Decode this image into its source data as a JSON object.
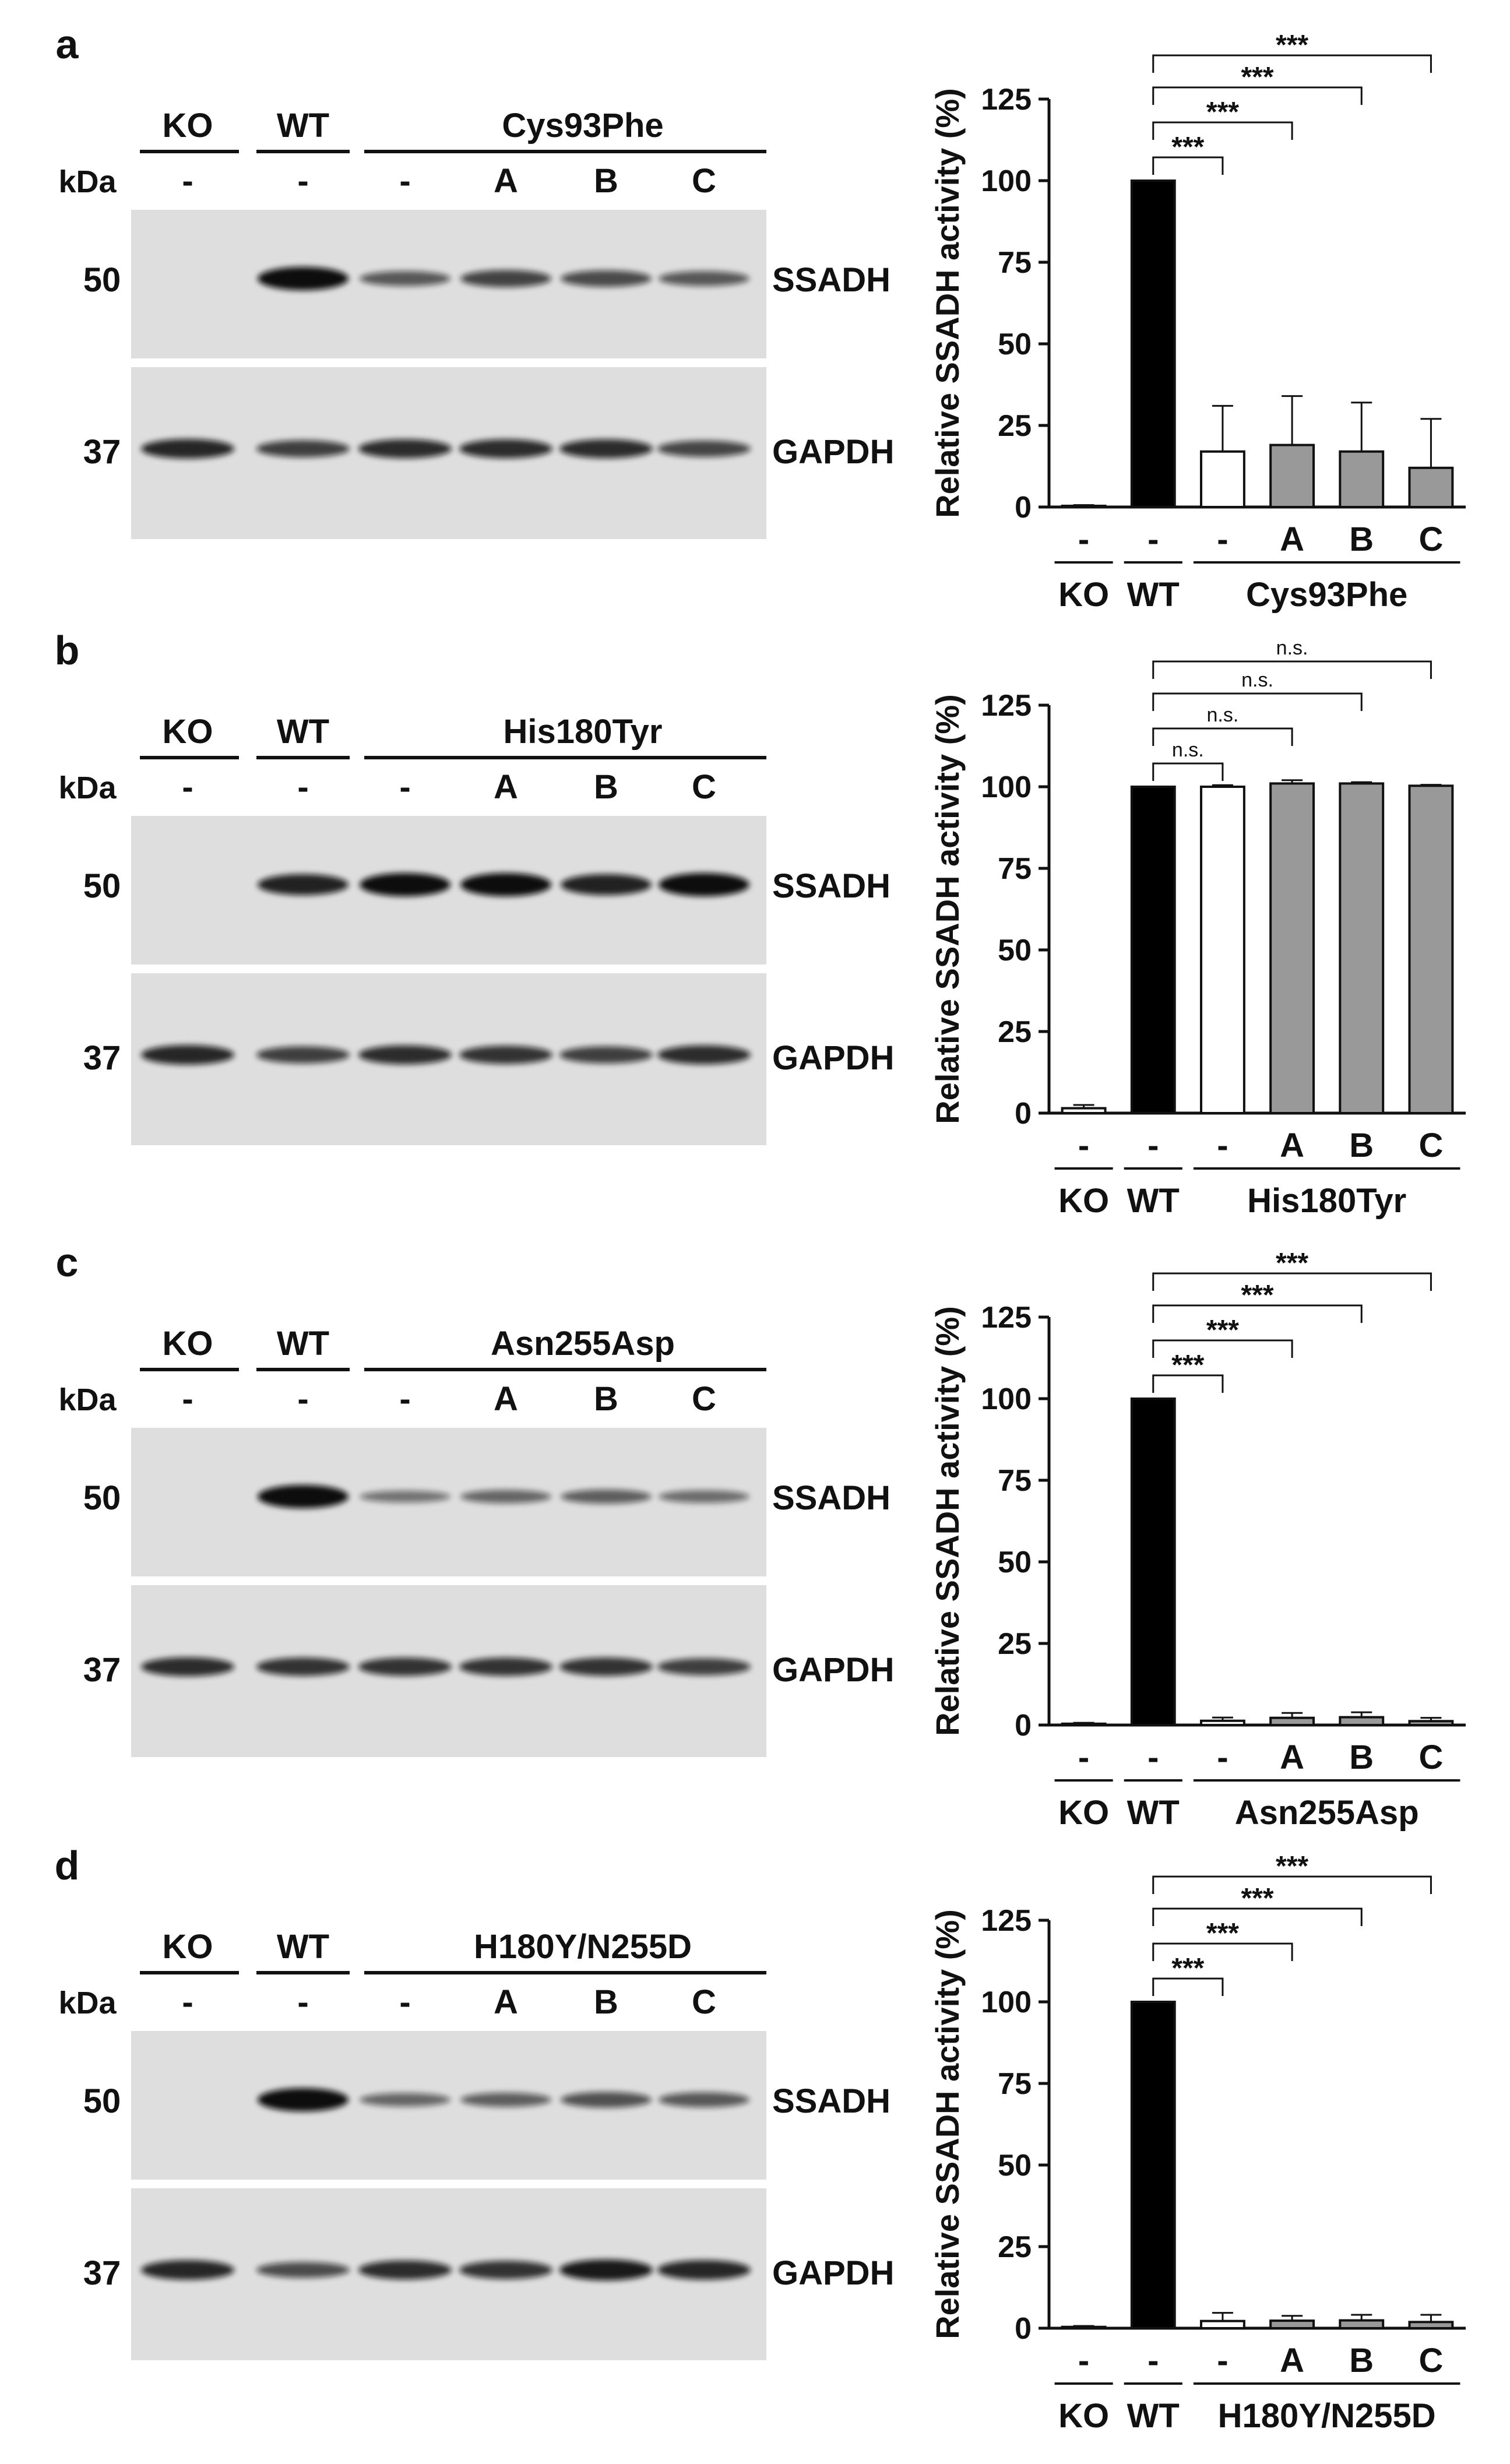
{
  "colors": {
    "wt_bar": "#000000",
    "mutant_minus_bar": "#ffffff",
    "mutant_abc_bar": "#999999",
    "ko_bar": "#ffffff",
    "blot_background": "#dedede",
    "band": "#111111"
  },
  "panels": [
    {
      "letter": "a",
      "blot": {
        "groups": [
          "KO",
          "WT",
          "Cys93Phe"
        ],
        "kda_label": "kDa",
        "lane_labels": [
          "-",
          "-",
          "-",
          "A",
          "B",
          "C"
        ],
        "markers": [
          "50",
          "37"
        ],
        "proteins": [
          "SSADH",
          "GAPDH"
        ],
        "ssadh_intensity": [
          0,
          1.0,
          0.45,
          0.6,
          0.55,
          0.45
        ],
        "gapdh_intensity": [
          0.8,
          0.6,
          0.75,
          0.75,
          0.75,
          0.55
        ]
      },
      "chart_data": {
        "type": "bar",
        "ylabel": "Relative SSADH activity (%)",
        "ylim": [
          0,
          125
        ],
        "yticks": [
          "0",
          "25",
          "50",
          "75",
          "100",
          "125"
        ],
        "categories": [
          "-",
          "-",
          "-",
          "A",
          "B",
          "C"
        ],
        "groups": [
          "KO",
          "WT",
          "Cys93Phe"
        ],
        "values": [
          0.3,
          100,
          17,
          19,
          17,
          12
        ],
        "errors": [
          0.3,
          0,
          14,
          15,
          15,
          15
        ],
        "significance": [
          "***",
          "***",
          "***",
          "***"
        ]
      }
    },
    {
      "letter": "b",
      "blot": {
        "groups": [
          "KO",
          "WT",
          "His180Tyr"
        ],
        "kda_label": "kDa",
        "lane_labels": [
          "-",
          "-",
          "-",
          "A",
          "B",
          "C"
        ],
        "markers": [
          "50",
          "37"
        ],
        "proteins": [
          "SSADH",
          "GAPDH"
        ],
        "ssadh_intensity": [
          0,
          0.85,
          1.0,
          1.0,
          0.85,
          1.0
        ],
        "gapdh_intensity": [
          0.8,
          0.6,
          0.75,
          0.7,
          0.6,
          0.75
        ]
      },
      "chart_data": {
        "type": "bar",
        "ylabel": "Relative SSADH activity (%)",
        "ylim": [
          0,
          125
        ],
        "yticks": [
          "0",
          "25",
          "50",
          "75",
          "100",
          "125"
        ],
        "categories": [
          "-",
          "-",
          "-",
          "A",
          "B",
          "C"
        ],
        "groups": [
          "KO",
          "WT",
          "His180Tyr"
        ],
        "values": [
          1.5,
          100,
          100,
          101,
          101,
          100.3
        ],
        "errors": [
          1,
          0,
          0.5,
          1,
          0.4,
          0.3
        ],
        "significance": [
          "n.s.",
          "n.s.",
          "n.s.",
          "n.s."
        ]
      }
    },
    {
      "letter": "c",
      "blot": {
        "groups": [
          "KO",
          "WT",
          "Asn255Asp"
        ],
        "kda_label": "kDa",
        "lane_labels": [
          "-",
          "-",
          "-",
          "A",
          "B",
          "C"
        ],
        "markers": [
          "50",
          "37"
        ],
        "proteins": [
          "SSADH",
          "GAPDH"
        ],
        "ssadh_intensity": [
          0,
          1.0,
          0.25,
          0.35,
          0.4,
          0.3
        ],
        "gapdh_intensity": [
          0.75,
          0.7,
          0.7,
          0.7,
          0.7,
          0.6
        ]
      },
      "chart_data": {
        "type": "bar",
        "ylabel": "Relative SSADH activity (%)",
        "ylim": [
          0,
          125
        ],
        "yticks": [
          "0",
          "25",
          "50",
          "75",
          "100",
          "125"
        ],
        "categories": [
          "-",
          "-",
          "-",
          "A",
          "B",
          "C"
        ],
        "groups": [
          "KO",
          "WT",
          "Asn255Asp"
        ],
        "values": [
          0.4,
          100,
          1.3,
          2.2,
          2.4,
          1.2
        ],
        "errors": [
          0.3,
          0,
          1,
          1.5,
          1.5,
          1
        ],
        "significance": [
          "***",
          "***",
          "***",
          "***"
        ]
      }
    },
    {
      "letter": "d",
      "blot": {
        "groups": [
          "KO",
          "WT",
          "H180Y/N255D"
        ],
        "kda_label": "kDa",
        "lane_labels": [
          "-",
          "-",
          "-",
          "A",
          "B",
          "C"
        ],
        "markers": [
          "50",
          "37"
        ],
        "proteins": [
          "SSADH",
          "GAPDH"
        ],
        "ssadh_intensity": [
          0,
          1.0,
          0.35,
          0.4,
          0.5,
          0.45
        ],
        "gapdh_intensity": [
          0.8,
          0.5,
          0.75,
          0.7,
          0.9,
          0.8
        ]
      },
      "chart_data": {
        "type": "bar",
        "ylabel": "Relative SSADH activity (%)",
        "ylim": [
          0,
          125
        ],
        "yticks": [
          "0",
          "25",
          "50",
          "75",
          "100",
          "125"
        ],
        "categories": [
          "-",
          "-",
          "-",
          "A",
          "B",
          "C"
        ],
        "groups": [
          "KO",
          "WT",
          "H180Y/N255D"
        ],
        "values": [
          0.4,
          100,
          2.2,
          2.3,
          2.4,
          1.9
        ],
        "errors": [
          0.3,
          0,
          2.5,
          1.5,
          1.7,
          2.2
        ],
        "significance": [
          "***",
          "***",
          "***",
          "***"
        ]
      }
    }
  ]
}
